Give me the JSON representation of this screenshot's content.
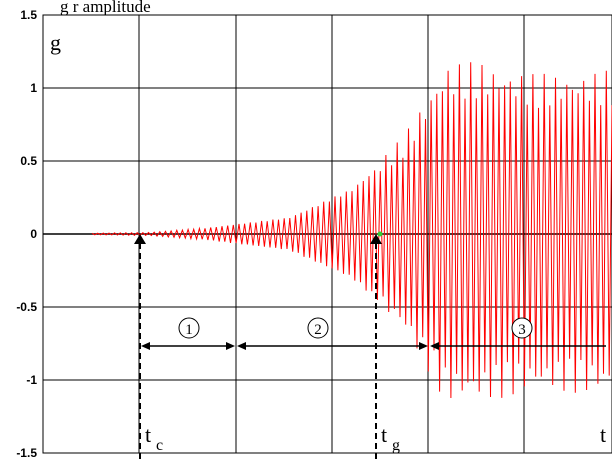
{
  "caption": "g                                                    r amplitude",
  "chart_data": {
    "type": "line",
    "ylabel": "g",
    "ylim": [
      -1.5,
      1.5
    ],
    "yticks": [
      -1.5,
      -1,
      -0.5,
      0,
      0.5,
      1,
      1.5
    ],
    "ytick_labels": [
      "-1.5",
      "-1",
      "-0.5",
      "0",
      "0.5",
      "1",
      "1.5"
    ],
    "x_gridlines": 6,
    "grid": true,
    "series": [
      {
        "color": "#ff0000",
        "envelope": [
          {
            "t": 0.0,
            "amp": 0.005
          },
          {
            "t": 0.11,
            "amp": 0.01
          },
          {
            "t": 0.22,
            "amp": 0.04
          },
          {
            "t": 0.38,
            "amp": 0.11
          },
          {
            "t": 0.5,
            "amp": 0.3
          },
          {
            "t": 0.6,
            "amp": 0.6
          },
          {
            "t": 0.68,
            "amp": 1.05
          },
          {
            "t": 0.75,
            "amp": 1.05
          },
          {
            "t": 0.85,
            "amp": 0.98
          },
          {
            "t": 1.0,
            "amp": 1.0
          }
        ],
        "cycles": 92
      }
    ],
    "markers": [
      {
        "name": "tc",
        "label": "t",
        "subscript": "c"
      },
      {
        "name": "tg",
        "label": "t",
        "subscript": "g"
      },
      {
        "name": "t3",
        "label": "t",
        "subscript": ""
      }
    ],
    "phases": [
      {
        "label": "①"
      },
      {
        "label": "②"
      },
      {
        "label": "③"
      }
    ],
    "onset_marker_color": "#33cc33"
  }
}
